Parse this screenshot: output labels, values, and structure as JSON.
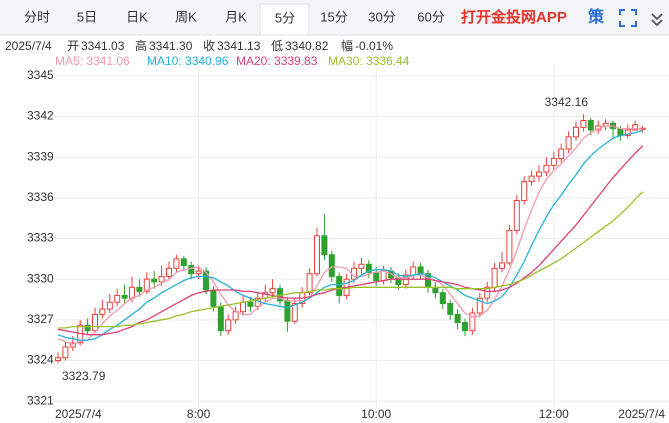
{
  "toolbar": {
    "tabs": [
      "分时",
      "5日",
      "日K",
      "周K",
      "月K",
      "5分",
      "15分",
      "30分",
      "60分"
    ],
    "app_link": "打开金投网APP",
    "strategy": "策"
  },
  "quote": {
    "date": "2025/7/4",
    "items": [
      {
        "label": "开",
        "value": "3341.03"
      },
      {
        "label": "高",
        "value": "3341.30"
      },
      {
        "label": "收",
        "value": "3341.13"
      },
      {
        "label": "低",
        "value": "3340.82"
      },
      {
        "label": "幅",
        "value": "-0.01%"
      }
    ]
  },
  "chart_data": {
    "type": "candlestick",
    "categories": [
      "2025/7/4",
      null,
      null,
      null,
      null,
      null,
      null,
      null,
      null,
      null,
      null,
      null,
      null,
      null,
      null,
      null,
      null,
      null,
      null,
      "8:00",
      null,
      null,
      null,
      null,
      null,
      null,
      null,
      null,
      null,
      null,
      null,
      null,
      null,
      null,
      null,
      null,
      null,
      null,
      null,
      null,
      null,
      null,
      null,
      "10:00",
      null,
      null,
      null,
      null,
      null,
      null,
      null,
      null,
      null,
      null,
      null,
      null,
      null,
      null,
      null,
      null,
      null,
      null,
      null,
      null,
      null,
      null,
      null,
      "12:00",
      null,
      null,
      null,
      null,
      null,
      null,
      null,
      null,
      null,
      null,
      null,
      "2025/7/4"
    ],
    "open": [
      3324.0,
      3324.2,
      3325.0,
      3325.3,
      3326.6,
      3326.2,
      3327.4,
      3327.8,
      3328.3,
      3328.8,
      3328.6,
      3329.4,
      3329.1,
      3330.0,
      3329.8,
      3330.2,
      3330.8,
      3331.5,
      3331.0,
      3330.4,
      3330.6,
      3329.2,
      3328.0,
      3326.2,
      3327.0,
      3327.6,
      3328.3,
      3328.0,
      3328.6,
      3329.0,
      3329.3,
      3328.4,
      3326.9,
      3328.2,
      3329.0,
      3330.4,
      3333.2,
      3331.8,
      3330.2,
      3328.8,
      3330.0,
      3330.8,
      3331.1,
      3330.5,
      3329.9,
      3330.6,
      3330.1,
      3329.6,
      3330.3,
      3330.9,
      3330.4,
      3329.4,
      3329.0,
      3328.2,
      3327.4,
      3326.8,
      3326.2,
      3327.5,
      3328.6,
      3329.4,
      3330.8,
      3331.2,
      3333.6,
      3335.8,
      3337.2,
      3337.6,
      3337.9,
      3338.4,
      3338.9,
      3339.6,
      3340.5,
      3341.2,
      3341.7,
      3341.0,
      3341.3,
      3341.5,
      3341.1,
      3340.6,
      3341.0,
      3341.03
    ],
    "high": [
      3324.6,
      3325.4,
      3325.8,
      3327.0,
      3327.1,
      3327.9,
      3328.5,
      3328.9,
      3329.3,
      3329.6,
      3330.2,
      3330.0,
      3330.5,
      3330.6,
      3331.0,
      3331.3,
      3331.8,
      3331.7,
      3331.3,
      3331.0,
      3330.9,
      3329.5,
      3328.3,
      3327.4,
      3328.0,
      3328.8,
      3328.7,
      3329.0,
      3329.6,
      3330.0,
      3329.6,
      3328.7,
      3328.6,
      3329.4,
      3330.8,
      3333.8,
      3334.8,
      3332.1,
      3330.5,
      3330.4,
      3331.3,
      3331.6,
      3331.4,
      3330.9,
      3331.0,
      3330.9,
      3330.4,
      3330.7,
      3331.3,
      3331.2,
      3330.7,
      3329.8,
      3329.3,
      3328.5,
      3327.8,
      3327.1,
      3327.9,
      3329.0,
      3329.8,
      3331.2,
      3332.0,
      3334.0,
      3336.2,
      3337.6,
      3338.0,
      3338.4,
      3339.0,
      3339.4,
      3340.0,
      3340.9,
      3341.6,
      3342.16,
      3341.9,
      3341.7,
      3341.8,
      3341.7,
      3341.3,
      3341.4,
      3341.7,
      3341.3
    ],
    "low": [
      3323.79,
      3324.0,
      3324.7,
      3325.1,
      3325.9,
      3326.0,
      3327.1,
      3327.5,
      3328.0,
      3328.2,
      3328.3,
      3328.7,
      3328.9,
      3329.3,
      3329.5,
      3329.9,
      3330.5,
      3330.6,
      3330.0,
      3330.0,
      3328.9,
      3327.6,
      3325.8,
      3325.9,
      3326.7,
      3327.3,
      3327.6,
      3327.7,
      3328.3,
      3328.7,
      3328.1,
      3326.1,
      3326.7,
      3327.9,
      3328.8,
      3330.2,
      3331.4,
      3329.8,
      3328.2,
      3328.5,
      3329.7,
      3330.4,
      3330.1,
      3329.5,
      3329.6,
      3329.7,
      3329.2,
      3329.3,
      3330.0,
      3330.0,
      3329.0,
      3328.6,
      3327.8,
      3327.0,
      3326.3,
      3325.8,
      3325.9,
      3327.2,
      3328.3,
      3329.1,
      3330.5,
      3331.0,
      3333.3,
      3335.5,
      3336.9,
      3337.2,
      3337.6,
      3338.1,
      3338.6,
      3339.3,
      3340.2,
      3340.9,
      3340.6,
      3340.7,
      3341.0,
      3340.3,
      3340.2,
      3340.4,
      3341.0,
      3340.82
    ],
    "close": [
      3324.2,
      3325.0,
      3325.3,
      3326.6,
      3326.2,
      3327.4,
      3327.8,
      3328.3,
      3328.8,
      3328.6,
      3329.4,
      3329.1,
      3330.0,
      3329.8,
      3330.2,
      3330.8,
      3331.5,
      3331.0,
      3330.4,
      3330.6,
      3329.2,
      3328.0,
      3326.2,
      3327.0,
      3327.6,
      3328.3,
      3328.0,
      3328.6,
      3329.0,
      3329.3,
      3328.4,
      3326.9,
      3328.2,
      3329.0,
      3330.4,
      3333.2,
      3331.8,
      3330.2,
      3328.8,
      3330.0,
      3330.8,
      3331.1,
      3330.5,
      3329.9,
      3330.6,
      3330.1,
      3329.6,
      3330.3,
      3330.9,
      3330.4,
      3329.4,
      3329.0,
      3328.2,
      3327.4,
      3326.8,
      3326.2,
      3327.5,
      3328.6,
      3329.4,
      3330.8,
      3331.2,
      3333.6,
      3335.8,
      3337.2,
      3337.6,
      3337.9,
      3338.4,
      3338.9,
      3339.6,
      3340.5,
      3341.2,
      3341.7,
      3341.0,
      3341.3,
      3341.5,
      3341.1,
      3340.6,
      3341.0,
      3341.4,
      3341.13
    ],
    "up_color": "#e8413c",
    "down_color": "#2fa12f",
    "series": [
      {
        "name": "MA5: 3341.06",
        "color": "#f29bb0",
        "values": [
          3325.6,
          3325.4,
          3325.2,
          3325.4,
          3325.5,
          3326.1,
          3326.7,
          3327.3,
          3327.7,
          3328.2,
          3328.6,
          3328.8,
          3329.2,
          3329.4,
          3329.7,
          3330.0,
          3330.5,
          3330.7,
          3330.8,
          3330.9,
          3330.5,
          3329.8,
          3328.9,
          3328.1,
          3327.6,
          3327.4,
          3327.4,
          3327.9,
          3328.3,
          3328.6,
          3328.6,
          3328.4,
          3328.4,
          3328.4,
          3328.6,
          3329.5,
          3330.5,
          3330.9,
          3330.9,
          3330.8,
          3330.2,
          3330.2,
          3330.4,
          3330.5,
          3330.6,
          3330.4,
          3330.1,
          3330.1,
          3330.3,
          3330.3,
          3330.1,
          3329.9,
          3329.6,
          3328.9,
          3328.2,
          3327.5,
          3327.2,
          3327.3,
          3327.7,
          3328.5,
          3329.5,
          3330.7,
          3332.1,
          3333.7,
          3335.1,
          3336.4,
          3337.4,
          3338.0,
          3338.5,
          3339.1,
          3339.7,
          3340.4,
          3340.8,
          3341.1,
          3341.3,
          3341.3,
          3341.1,
          3341.1,
          3341.1,
          3341.06
        ]
      },
      {
        "name": "MA10: 3340.96",
        "color": "#27b2d8",
        "values": [
          3325.9,
          3325.7,
          3325.6,
          3325.5,
          3325.5,
          3325.6,
          3325.9,
          3326.3,
          3326.6,
          3327.0,
          3327.4,
          3327.8,
          3328.3,
          3328.6,
          3329.0,
          3329.3,
          3329.6,
          3329.9,
          3330.1,
          3330.2,
          3330.2,
          3330.1,
          3329.8,
          3329.5,
          3329.1,
          3328.8,
          3328.6,
          3328.4,
          3328.2,
          3328.1,
          3328.0,
          3327.9,
          3328.1,
          3328.3,
          3328.6,
          3329.0,
          3329.4,
          3329.6,
          3329.6,
          3329.7,
          3329.9,
          3330.3,
          3330.6,
          3330.7,
          3330.7,
          3330.6,
          3330.3,
          3330.2,
          3330.3,
          3330.4,
          3330.3,
          3330.1,
          3329.8,
          3329.5,
          3329.2,
          3328.8,
          3328.6,
          3328.4,
          3328.2,
          3328.4,
          3328.7,
          3329.4,
          3330.3,
          3331.3,
          3332.5,
          3333.6,
          3334.6,
          3335.5,
          3336.2,
          3337.0,
          3337.7,
          3338.5,
          3339.1,
          3339.6,
          3340.0,
          3340.4,
          3340.6,
          3340.7,
          3340.8,
          3340.96
        ]
      },
      {
        "name": "MA20: 3339.83",
        "color": "#df3f77",
        "values": [
          3326.3,
          3326.2,
          3326.1,
          3326.0,
          3325.9,
          3325.9,
          3325.9,
          3326.0,
          3326.1,
          3326.3,
          3326.5,
          3326.8,
          3327.0,
          3327.3,
          3327.6,
          3327.9,
          3328.2,
          3328.5,
          3328.8,
          3329.0,
          3329.1,
          3329.2,
          3329.2,
          3329.2,
          3329.2,
          3329.1,
          3329.1,
          3329.0,
          3328.9,
          3328.8,
          3328.7,
          3328.6,
          3328.6,
          3328.6,
          3328.7,
          3328.9,
          3329.0,
          3329.2,
          3329.3,
          3329.4,
          3329.5,
          3329.6,
          3329.7,
          3329.8,
          3329.9,
          3330.0,
          3330.0,
          3330.0,
          3330.0,
          3330.0,
          3330.0,
          3329.9,
          3329.8,
          3329.7,
          3329.6,
          3329.4,
          3329.3,
          3329.2,
          3329.1,
          3329.1,
          3329.2,
          3329.4,
          3329.7,
          3330.1,
          3330.5,
          3331.0,
          3331.6,
          3332.2,
          3332.8,
          3333.4,
          3334.0,
          3334.7,
          3335.4,
          3336.1,
          3336.8,
          3337.5,
          3338.1,
          3338.7,
          3339.3,
          3339.83
        ]
      },
      {
        "name": "MA30: 3336.44",
        "color": "#9cc22a",
        "values": [
          3326.4,
          3326.4,
          3326.5,
          3326.5,
          3326.5,
          3326.5,
          3326.5,
          3326.5,
          3326.5,
          3326.6,
          3326.6,
          3326.7,
          3326.8,
          3326.9,
          3327.0,
          3327.1,
          3327.3,
          3327.4,
          3327.6,
          3327.7,
          3327.8,
          3327.9,
          3328.0,
          3328.1,
          3328.2,
          3328.3,
          3328.4,
          3328.5,
          3328.6,
          3328.7,
          3328.8,
          3328.9,
          3329.0,
          3329.0,
          3329.1,
          3329.2,
          3329.2,
          3329.3,
          3329.3,
          3329.3,
          3329.4,
          3329.4,
          3329.4,
          3329.4,
          3329.4,
          3329.4,
          3329.4,
          3329.4,
          3329.4,
          3329.4,
          3329.4,
          3329.4,
          3329.4,
          3329.4,
          3329.3,
          3329.3,
          3329.3,
          3329.3,
          3329.3,
          3329.4,
          3329.5,
          3329.6,
          3329.8,
          3330.0,
          3330.3,
          3330.6,
          3330.9,
          3331.2,
          3331.5,
          3331.9,
          3332.3,
          3332.7,
          3333.1,
          3333.5,
          3333.9,
          3334.3,
          3334.8,
          3335.3,
          3335.9,
          3336.44
        ]
      }
    ],
    "ylim": [
      3320.2,
      3345.8
    ],
    "yticks": [
      3345,
      3342,
      3339,
      3336,
      3333,
      3330,
      3327,
      3324,
      3321
    ],
    "grid": true,
    "annotations": [
      "3342.16",
      "3323.79"
    ]
  }
}
